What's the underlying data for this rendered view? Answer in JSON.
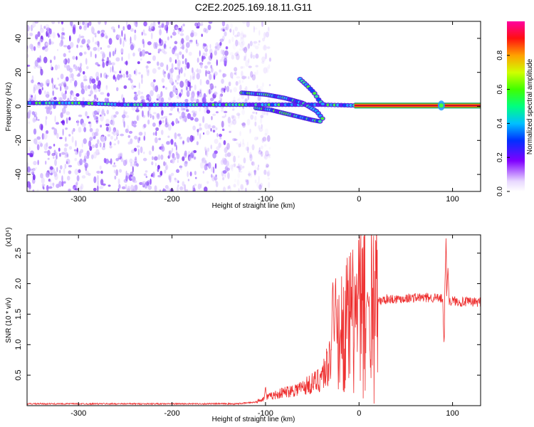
{
  "title": "C2E2.2025.169.18.11.G11",
  "colors": {
    "snr_line": "#ee3030",
    "carrier_band": "#d0102a"
  },
  "chart_data": [
    {
      "type": "heatmap",
      "title": "C2E2.2025.169.18.11.G11",
      "xlabel": "Height of straight line (km)",
      "ylabel": "Frequency (Hz)",
      "xlim": [
        -355,
        130
      ],
      "ylim": [
        -50,
        50
      ],
      "x_ticks": [
        -300,
        -200,
        -100,
        0,
        100
      ],
      "y_ticks": [
        -40,
        -20,
        0,
        20,
        40
      ],
      "colorbar": {
        "label": "Normalized spectral amplitude",
        "range": [
          0,
          1
        ],
        "ticks": [
          0.0,
          0.2,
          0.4,
          0.6,
          0.8
        ]
      },
      "features": [
        {
          "name": "noise",
          "x_range": [
            -355,
            -140
          ],
          "y_range": [
            -50,
            50
          ]
        },
        {
          "name": "carrier-main",
          "x": [
            -355,
            -300,
            -250,
            -200,
            -150,
            -110,
            -60,
            -40,
            0,
            130
          ],
          "y": [
            2,
            2,
            1,
            1,
            1,
            1,
            1,
            1,
            0.5,
            0.5
          ]
        },
        {
          "name": "branch-upper",
          "x": [
            -125,
            -100,
            -80,
            -60,
            -45,
            -38
          ],
          "y": [
            8,
            7,
            5,
            2,
            -3,
            -8
          ]
        },
        {
          "name": "branch-lower",
          "x": [
            -110,
            -95,
            -80,
            -65,
            -50,
            -40
          ],
          "y": [
            -1,
            -2,
            -4,
            -6,
            -8,
            -9
          ]
        },
        {
          "name": "branch-steep",
          "x": [
            -63,
            -55,
            -48,
            -42,
            -38
          ],
          "y": [
            16,
            12,
            8,
            3,
            1
          ]
        }
      ]
    },
    {
      "type": "line",
      "xlabel": "Height of straight line (km)",
      "ylabel": "SNR (10 * v/v)",
      "y_multiplier": "(x10⁴)",
      "xlim": [
        -355,
        130
      ],
      "ylim": [
        0,
        2.8
      ],
      "x_ticks": [
        -300,
        -200,
        -100,
        0,
        100
      ],
      "y_ticks": [
        0.5,
        1.0,
        1.5,
        2.0,
        2.5
      ],
      "envelope": {
        "x": [
          -355,
          -130,
          -110,
          -100,
          -80,
          -60,
          -45,
          -35,
          -28,
          -25,
          -20,
          -15,
          -5,
          0,
          10,
          20,
          30,
          40,
          60,
          80,
          88,
          92,
          96,
          100,
          110,
          130
        ],
        "y": [
          0.03,
          0.03,
          0.06,
          0.13,
          0.22,
          0.3,
          0.4,
          0.6,
          1.0,
          0.9,
          1.2,
          1.3,
          1.4,
          1.5,
          1.6,
          1.7,
          1.75,
          1.75,
          1.77,
          1.77,
          1.75,
          1.75,
          1.7,
          1.72,
          1.7,
          1.7
        ]
      },
      "spikes": [
        {
          "x": -28,
          "y": 2.33
        },
        {
          "x": -25,
          "y": 2.3
        },
        {
          "x": 91,
          "y": 0.72
        },
        {
          "x": 93,
          "y": 2.8
        },
        {
          "x": 95,
          "y": 2.4
        },
        {
          "x": -100,
          "y": 0.33
        },
        {
          "x": 9,
          "y": 1.9
        }
      ]
    }
  ]
}
